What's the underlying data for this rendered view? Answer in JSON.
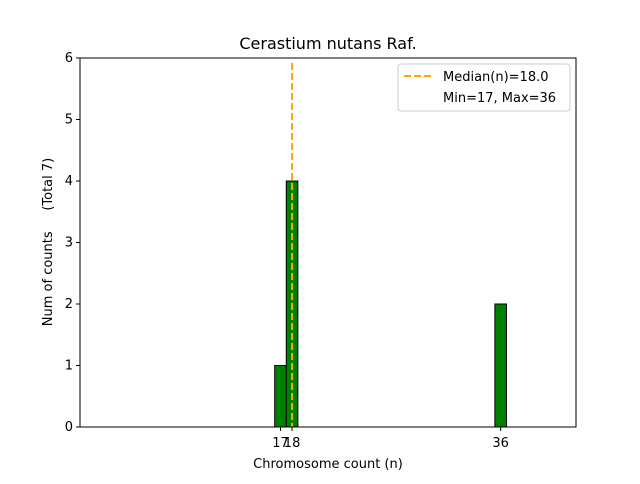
{
  "chart_data": {
    "type": "bar",
    "title": "Cerastium nutans Raf.",
    "xlabel": "Chromosome count (n)",
    "ylabel": "Num of counts     (Total 7)",
    "ylim": [
      0,
      6
    ],
    "xlim": [
      -0.3,
      42.5
    ],
    "yticks": [
      0,
      1,
      2,
      3,
      4,
      5,
      6
    ],
    "xticks": [
      17,
      18,
      36
    ],
    "bins": [
      {
        "x": 17,
        "count": 1
      },
      {
        "x": 18,
        "count": 4
      },
      {
        "x": 36,
        "count": 2
      }
    ],
    "bar_color": "#008000",
    "baseline_end": 39.3,
    "median": 18.0,
    "median_color": "#FFA500",
    "legend": {
      "placement": "top-right",
      "median_label": "Median(n)=18.0",
      "range_label": "Min=17, Max=36"
    }
  }
}
